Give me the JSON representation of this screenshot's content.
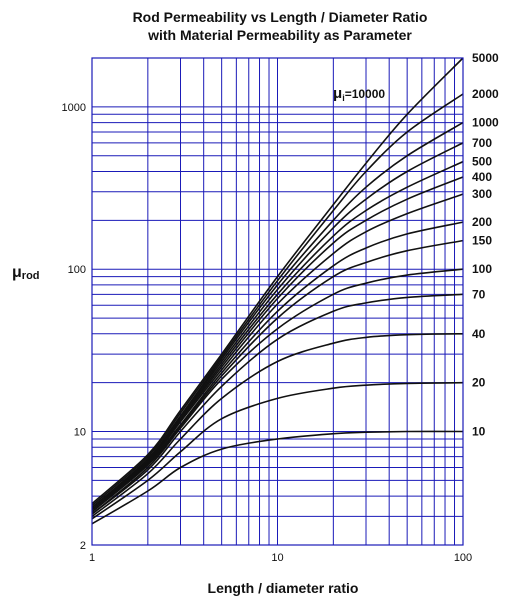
{
  "chart_data": {
    "type": "line",
    "title_line1": "Rod Permeability vs Length / Diameter Ratio",
    "title_line2": "with Material Permeability as Parameter",
    "xlabel": "Length / diameter ratio",
    "ylabel_main": "μ",
    "ylabel_sub": "rod",
    "x_scale": "log",
    "y_scale": "log",
    "xlim": [
      1,
      100
    ],
    "ylim": [
      2,
      2000
    ],
    "x_ticks": [
      {
        "value": 1,
        "label": "1"
      },
      {
        "value": 10,
        "label": "10"
      },
      {
        "value": 100,
        "label": "100"
      }
    ],
    "y_ticks": [
      {
        "value": 2,
        "label": "2"
      },
      {
        "value": 10,
        "label": "10"
      },
      {
        "value": 100,
        "label": "100"
      },
      {
        "value": 1000,
        "label": "1000"
      }
    ],
    "grid": true,
    "grid_color": "#1a1ab8",
    "line_color": "#111111",
    "annotation": {
      "main": "μ",
      "sub": "i",
      "text": "=10000"
    },
    "x": [
      1,
      2,
      3,
      5,
      10,
      20,
      30,
      50,
      100
    ],
    "series": [
      {
        "name": "5000",
        "values": [
          3.6,
          7.2,
          13.5,
          30,
          90,
          250,
          450,
          900,
          2000
        ]
      },
      {
        "name": "2000",
        "values": [
          3.5,
          7.0,
          13,
          29,
          85,
          230,
          400,
          700,
          1200
        ]
      },
      {
        "name": "1000",
        "values": [
          3.4,
          6.8,
          12.5,
          28,
          80,
          200,
          320,
          500,
          800
        ]
      },
      {
        "name": "700",
        "values": [
          3.4,
          6.7,
          12.3,
          27,
          75,
          180,
          270,
          400,
          600
        ]
      },
      {
        "name": "500",
        "values": [
          3.3,
          6.6,
          12,
          26,
          70,
          160,
          230,
          320,
          460
        ]
      },
      {
        "name": "400",
        "values": [
          3.3,
          6.5,
          11.8,
          25,
          66,
          145,
          200,
          270,
          370
        ]
      },
      {
        "name": "300",
        "values": [
          3.3,
          6.4,
          11.5,
          24,
          61,
          125,
          170,
          220,
          290
        ]
      },
      {
        "name": "200",
        "values": [
          3.2,
          6.3,
          11,
          23,
          55,
          105,
          135,
          165,
          195
        ]
      },
      {
        "name": "150",
        "values": [
          3.2,
          6.2,
          10.8,
          22,
          50,
          90,
          110,
          130,
          150
        ]
      },
      {
        "name": "100",
        "values": [
          3.1,
          6.0,
          10.5,
          21,
          43,
          70,
          82,
          92,
          100
        ]
      },
      {
        "name": "70",
        "values": [
          3.1,
          5.8,
          10,
          19,
          37,
          55,
          62,
          67,
          70
        ]
      },
      {
        "name": "40",
        "values": [
          3.0,
          5.5,
          9,
          16,
          27,
          35,
          38,
          39.5,
          40
        ]
      },
      {
        "name": "20",
        "values": [
          2.9,
          5.0,
          7.5,
          12,
          16,
          18.5,
          19.3,
          19.8,
          20
        ]
      },
      {
        "name": "10",
        "values": [
          2.7,
          4.3,
          6.0,
          7.8,
          9.0,
          9.7,
          9.9,
          10,
          10
        ]
      }
    ]
  }
}
